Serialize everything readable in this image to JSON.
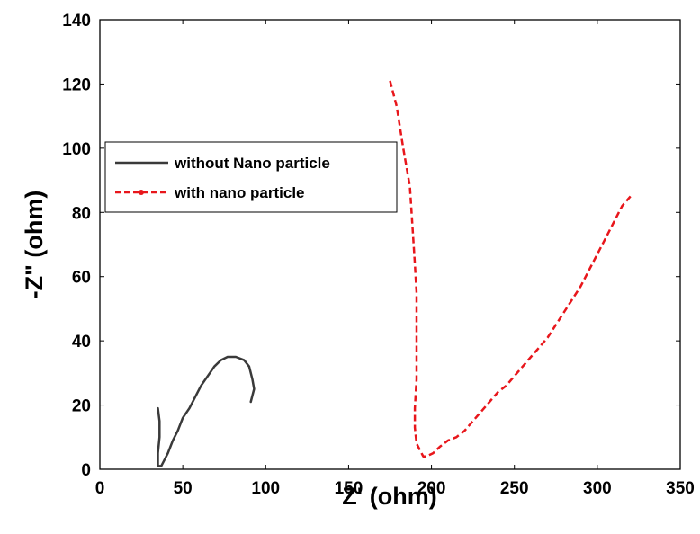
{
  "chart_data": {
    "type": "line",
    "xlabel": "Z' (ohm)",
    "ylabel": "-Z\" (ohm)",
    "xlim": [
      0,
      350
    ],
    "ylim": [
      0,
      140
    ],
    "xticks": [
      0,
      50,
      100,
      150,
      200,
      250,
      300,
      350
    ],
    "yticks": [
      0,
      20,
      40,
      60,
      80,
      100,
      120,
      140
    ],
    "grid": false,
    "legend_position": "upper-left",
    "series": [
      {
        "name": "without Nano particle",
        "color": "#3a3a3a",
        "style": "solid",
        "points": [
          [
            35,
            19
          ],
          [
            36,
            15
          ],
          [
            36,
            10
          ],
          [
            35,
            5
          ],
          [
            35,
            1
          ],
          [
            37,
            1
          ],
          [
            39,
            3
          ],
          [
            41,
            5
          ],
          [
            44,
            9
          ],
          [
            47,
            12
          ],
          [
            50,
            16
          ],
          [
            54,
            19
          ],
          [
            57,
            22
          ],
          [
            61,
            26
          ],
          [
            65,
            29
          ],
          [
            69,
            32
          ],
          [
            73,
            34
          ],
          [
            77,
            35
          ],
          [
            82,
            35
          ],
          [
            87,
            34
          ],
          [
            90,
            32
          ],
          [
            92,
            28
          ],
          [
            93,
            25
          ],
          [
            91,
            21
          ]
        ]
      },
      {
        "name": "with nano particle",
        "color": "#e8161b",
        "style": "dashed",
        "points": [
          [
            175,
            121
          ],
          [
            179,
            113
          ],
          [
            183,
            100
          ],
          [
            187,
            88
          ],
          [
            190,
            64
          ],
          [
            191,
            55
          ],
          [
            191,
            40
          ],
          [
            191,
            28
          ],
          [
            190,
            19
          ],
          [
            190,
            13
          ],
          [
            191,
            8
          ],
          [
            193,
            6
          ],
          [
            195,
            4
          ],
          [
            197,
            4
          ],
          [
            201,
            5
          ],
          [
            205,
            7
          ],
          [
            210,
            9
          ],
          [
            215,
            10
          ],
          [
            220,
            12
          ],
          [
            225,
            15
          ],
          [
            230,
            18
          ],
          [
            235,
            21
          ],
          [
            240,
            24
          ],
          [
            245,
            26
          ],
          [
            250,
            29
          ],
          [
            255,
            32
          ],
          [
            260,
            35
          ],
          [
            265,
            38
          ],
          [
            270,
            41
          ],
          [
            275,
            45
          ],
          [
            280,
            49
          ],
          [
            285,
            53
          ],
          [
            290,
            57
          ],
          [
            295,
            62
          ],
          [
            300,
            67
          ],
          [
            305,
            72
          ],
          [
            310,
            77
          ],
          [
            315,
            82
          ],
          [
            320,
            85
          ]
        ]
      }
    ]
  }
}
